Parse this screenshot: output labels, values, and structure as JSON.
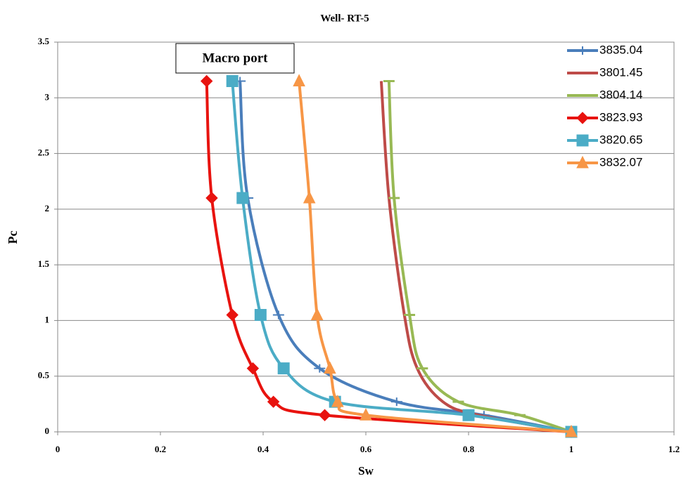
{
  "chart_data": {
    "type": "line",
    "title": "Well- RT-5",
    "x_label": "Sw",
    "y_label": "Pc",
    "xlim": [
      0,
      1.2
    ],
    "xticks": [
      0,
      0.2,
      0.4,
      0.6,
      0.8,
      1,
      1.2
    ],
    "ylim": [
      0,
      3.5
    ],
    "yticks": [
      0,
      0.5,
      1,
      1.5,
      2,
      2.5,
      3,
      3.5
    ],
    "grid": true,
    "legend_position": "upper right",
    "annotation": "Macro port",
    "series": [
      {
        "name": "3835.04",
        "color": "#4a7ebb",
        "marker": "plus",
        "x": [
          0.355,
          0.37,
          0.43,
          0.51,
          0.66,
          0.83,
          1.0
        ],
        "values": [
          3.15,
          2.1,
          1.05,
          0.57,
          0.27,
          0.15,
          0
        ]
      },
      {
        "name": "3801.45",
        "color": "#be4b48",
        "marker": "none",
        "x": [
          0.63,
          0.645,
          0.675,
          0.7,
          0.75,
          0.82,
          1.0
        ],
        "values": [
          3.15,
          2.1,
          1.05,
          0.57,
          0.27,
          0.15,
          0
        ]
      },
      {
        "name": "3804.14",
        "color": "#98b954",
        "marker": "dash",
        "x": [
          0.645,
          0.655,
          0.685,
          0.71,
          0.78,
          0.9,
          1.0
        ],
        "values": [
          3.15,
          2.1,
          1.05,
          0.57,
          0.27,
          0.15,
          0
        ]
      },
      {
        "name": "3823.93",
        "color": "#e8130f",
        "marker": "diamond",
        "x": [
          0.29,
          0.3,
          0.34,
          0.38,
          0.42,
          0.52,
          1.0
        ],
        "values": [
          3.15,
          2.1,
          1.05,
          0.57,
          0.27,
          0.15,
          0
        ]
      },
      {
        "name": "3820.65",
        "color": "#4bacc6",
        "marker": "square",
        "x": [
          0.34,
          0.36,
          0.395,
          0.44,
          0.54,
          0.8,
          1.0
        ],
        "values": [
          3.15,
          2.1,
          1.05,
          0.57,
          0.27,
          0.15,
          0
        ]
      },
      {
        "name": "3832.07",
        "color": "#f79646",
        "marker": "triangle",
        "x": [
          0.47,
          0.49,
          0.505,
          0.53,
          0.545,
          0.6,
          1.0
        ],
        "values": [
          3.15,
          2.1,
          1.05,
          0.57,
          0.27,
          0.15,
          0
        ]
      }
    ]
  }
}
